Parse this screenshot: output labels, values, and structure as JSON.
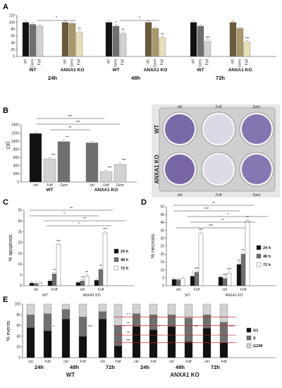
{
  "panels": {
    "A": {
      "letter": "A"
    },
    "B": {
      "letter": "B"
    },
    "C": {
      "letter": "C"
    },
    "D": {
      "letter": "D"
    },
    "E": {
      "letter": "E"
    }
  },
  "colors": {
    "black": "#111111",
    "dark_gray": "#6f6f6f",
    "light_gray": "#d2d2d2",
    "olive": "#6b5a3a",
    "tan": "#a8986a",
    "cream": "#e7dfb8",
    "red": "#c62828",
    "white": "#ffffff"
  },
  "chart_data": [
    {
      "panel": "A",
      "type": "bar",
      "ylim": [
        0,
        120
      ],
      "yticks": [
        0,
        20,
        40,
        60,
        80,
        100,
        120
      ],
      "group_titles": [
        "WT",
        "ANXA1 KO",
        "WT",
        "ANXA1 KO",
        "WT",
        "ANXA1 KO"
      ],
      "time_labels": [
        "24h",
        "48h",
        "72h"
      ],
      "categories": [
        "ctrl",
        "Gem",
        "Folf"
      ],
      "groups": [
        {
          "values": [
            100,
            94,
            89
          ],
          "stars": [
            "",
            "",
            ""
          ]
        },
        {
          "values": [
            100,
            97,
            71
          ],
          "stars": [
            "",
            "",
            "**"
          ]
        },
        {
          "values": [
            100,
            89,
            67
          ],
          "stars": [
            "",
            "*",
            "**"
          ]
        },
        {
          "values": [
            100,
            82,
            54
          ],
          "stars": [
            "",
            "",
            "**"
          ]
        },
        {
          "values": [
            100,
            89,
            44
          ],
          "stars": [
            "",
            "",
            "***"
          ]
        },
        {
          "values": [
            100,
            82,
            42
          ],
          "stars": [
            "",
            "",
            "***"
          ]
        }
      ],
      "brackets": [
        "*",
        "*"
      ]
    },
    {
      "panel": "B",
      "type": "bar",
      "ylim": [
        0,
        1400
      ],
      "yticks": [
        0,
        200,
        400,
        600,
        800,
        1000,
        1200,
        1400
      ],
      "ylabel": "OD",
      "group_titles": [
        "WT",
        "ANXA1 KO"
      ],
      "categories": [
        "ctrl",
        "Folf",
        "Gem"
      ],
      "groups": [
        {
          "values": [
            1190,
            560,
            990
          ],
          "stars": [
            "",
            "***",
            "**"
          ]
        },
        {
          "values": [
            960,
            250,
            430
          ],
          "stars": [
            "",
            "***",
            "***"
          ]
        }
      ],
      "brackets": [
        "***",
        "***",
        "**"
      ],
      "plate_labels": {
        "cols": [
          "ctrl",
          "Folf",
          "Gem"
        ],
        "rows": [
          "WT",
          "ANXA1 KO"
        ]
      }
    },
    {
      "panel": "C",
      "type": "bar",
      "ylim": [
        0,
        35
      ],
      "yticks": [
        0,
        5,
        10,
        15,
        20,
        25,
        30,
        35
      ],
      "ylabel": "% apoptosis",
      "group_titles": [
        "WT",
        "ANXA1 KO"
      ],
      "categories": [
        "ctrl",
        "Folf",
        "ctrl",
        "Folf"
      ],
      "series": [
        {
          "name": "24 h",
          "values": [
            1.2,
            2.2,
            1.5,
            2.5
          ]
        },
        {
          "name": "48 h",
          "values": [
            1.0,
            5.5,
            2.2,
            7.5
          ]
        },
        {
          "name": "72 h",
          "values": [
            1.1,
            19.0,
            4.5,
            24.5
          ]
        }
      ],
      "stars": [
        [
          "",
          "",
          "",
          ""
        ],
        [
          "",
          "**",
          "**",
          "**"
        ],
        [
          "",
          "***",
          "**",
          "***"
        ]
      ],
      "brackets": [
        "**",
        "*",
        "**",
        "*"
      ]
    },
    {
      "panel": "D",
      "type": "bar",
      "ylim": [
        0,
        50
      ],
      "yticks": [
        0,
        5,
        10,
        15,
        20,
        25,
        30,
        35,
        40,
        45,
        50
      ],
      "ylabel": "% necrosis",
      "group_titles": [
        "WT",
        "ANXA1 KO"
      ],
      "categories": [
        "ctrl",
        "Folf",
        "ctrl",
        "Folf"
      ],
      "series": [
        {
          "name": "24 h",
          "values": [
            4.0,
            6.0,
            5.5,
            13.5
          ]
        },
        {
          "name": "48 h",
          "values": [
            3.8,
            8.5,
            4.5,
            20.0
          ]
        },
        {
          "name": "72 h",
          "values": [
            4.5,
            33.0,
            8.0,
            41.0
          ]
        }
      ],
      "stars": [
        [
          "",
          "*",
          "",
          "**"
        ],
        [
          "",
          "***",
          "***",
          "**"
        ],
        [
          "",
          "***",
          "***",
          "**"
        ]
      ],
      "brackets": [
        "**",
        "***",
        "*",
        "**",
        "***"
      ]
    },
    {
      "panel": "E",
      "type": "bar",
      "stacked": true,
      "ylim": [
        0,
        100
      ],
      "yticks": [
        0,
        20,
        40,
        60,
        80,
        100
      ],
      "ylabel": "% events",
      "group_titles": [
        "WT",
        "ANXA1 KO"
      ],
      "time_labels": [
        "24h",
        "48h",
        "72h",
        "24h",
        "48h",
        "72h"
      ],
      "categories": [
        "ctrl",
        "Folf",
        "ctrl",
        "Folf",
        "ctrl",
        "Folf",
        "ctrl",
        "Folf",
        "ctrl",
        "Folf",
        "ctrl",
        "Folf"
      ],
      "series": [
        {
          "name": "G1",
          "values": [
            56,
            50,
            72,
            40,
            72,
            22,
            58,
            52,
            58,
            30,
            55,
            28
          ]
        },
        {
          "name": "S",
          "values": [
            24,
            32,
            18,
            36,
            14,
            38,
            24,
            28,
            22,
            44,
            25,
            38
          ]
        },
        {
          "name": "G2/M",
          "values": [
            20,
            18,
            10,
            24,
            14,
            40,
            18,
            20,
            20,
            26,
            20,
            34
          ]
        }
      ],
      "right_stars": [
        "",
        "*",
        "",
        "***",
        "",
        "*",
        "",
        "*",
        "",
        "***",
        "",
        "***"
      ],
      "red_stars": [
        "* *",
        "**",
        "**",
        "***"
      ]
    }
  ]
}
